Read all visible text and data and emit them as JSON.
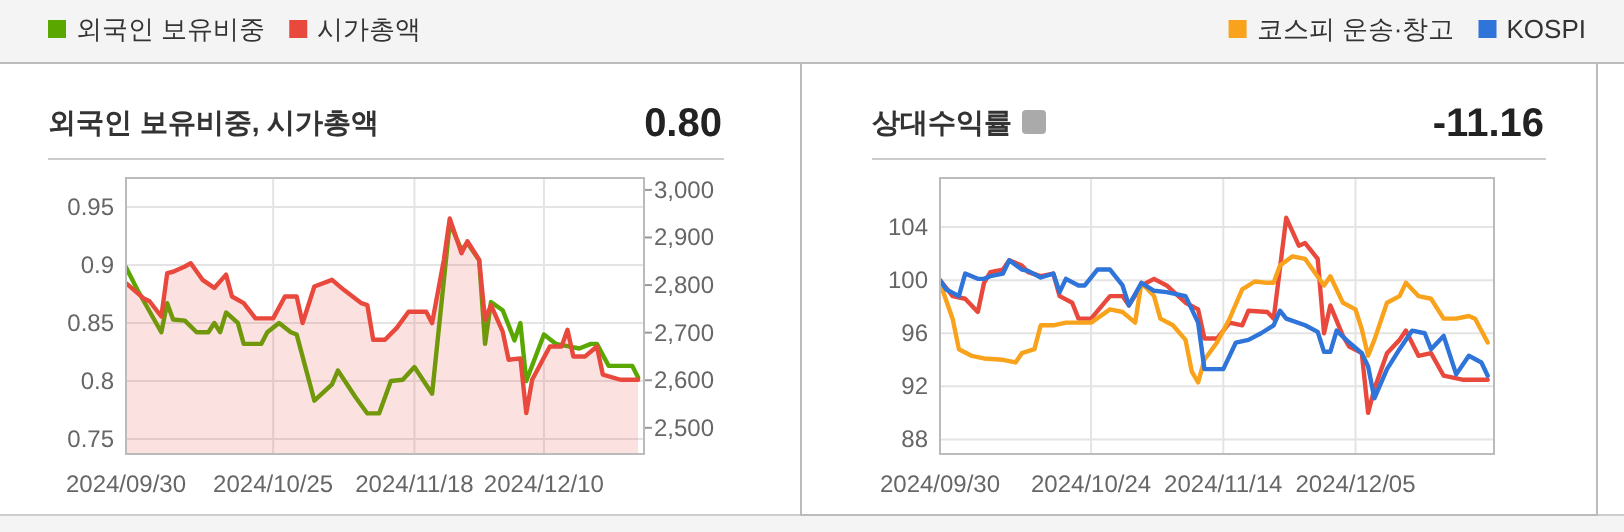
{
  "chart_data": [
    {
      "type": "line",
      "title": "외국인 보유비중, 시가총액",
      "subtitle": "0.80",
      "legend": "top left",
      "grid": true,
      "xlim": [
        "2024-09-30",
        "2024-12-27"
      ],
      "xticks": [
        {
          "value": "2024-09-30",
          "label": "2024/09/30"
        },
        {
          "value": "2024-10-25",
          "label": "2024/10/25"
        },
        {
          "value": "2024-11-18",
          "label": "2024/11/18"
        },
        {
          "value": "2024-12-10",
          "label": "2024/12/10"
        }
      ],
      "ylim": [
        0.737,
        0.975
      ],
      "yticks": [
        0.75,
        0.8,
        0.85,
        0.9,
        0.95
      ],
      "y2lim": [
        2445,
        3025
      ],
      "y2ticks": [
        {
          "value": 2500,
          "label": "2,500"
        },
        {
          "value": 2600,
          "label": "2,600"
        },
        {
          "value": 2700,
          "label": "2,700"
        },
        {
          "value": 2800,
          "label": "2,800"
        },
        {
          "value": 2900,
          "label": "2,900"
        },
        {
          "value": 3000,
          "label": "3,000"
        }
      ],
      "series": [
        {
          "name": "외국인 보유비중",
          "color": "#5aa700",
          "type": "line",
          "x": [
            "2024-09-30",
            "2024-10-02",
            "2024-10-06",
            "2024-10-07",
            "2024-10-08",
            "2024-10-10",
            "2024-10-12",
            "2024-10-14",
            "2024-10-15",
            "2024-10-16",
            "2024-10-17",
            "2024-10-19",
            "2024-10-20",
            "2024-10-23",
            "2024-10-24",
            "2024-10-26",
            "2024-10-28",
            "2024-10-29",
            "2024-11-01",
            "2024-11-04",
            "2024-11-05",
            "2024-11-08",
            "2024-11-10",
            "2024-11-12",
            "2024-11-14",
            "2024-11-16",
            "2024-11-18",
            "2024-11-21",
            "2024-11-24",
            "2024-11-26",
            "2024-11-27",
            "2024-11-29",
            "2024-11-30",
            "2024-12-01",
            "2024-12-03",
            "2024-12-05",
            "2024-12-06",
            "2024-12-07",
            "2024-12-10",
            "2024-12-12",
            "2024-12-14",
            "2024-12-16",
            "2024-12-18",
            "2024-12-19",
            "2024-12-21",
            "2024-12-25",
            "2024-12-26"
          ],
          "values": [
            0.898,
            0.878,
            0.842,
            0.867,
            0.853,
            0.852,
            0.842,
            0.842,
            0.85,
            0.842,
            0.859,
            0.85,
            0.832,
            0.832,
            0.842,
            0.85,
            0.842,
            0.84,
            0.783,
            0.797,
            0.809,
            0.786,
            0.772,
            0.772,
            0.8,
            0.801,
            0.812,
            0.789,
            0.936,
            0.913,
            0.919,
            0.904,
            0.832,
            0.868,
            0.861,
            0.835,
            0.85,
            0.8,
            0.84,
            0.832,
            0.83,
            0.828,
            0.832,
            0.832,
            0.813,
            0.813,
            0.803
          ]
        },
        {
          "name": "시가총액",
          "color": "#e8493c",
          "type": "area",
          "axis": "y2",
          "x": [
            "2024-09-30",
            "2024-10-03",
            "2024-10-04",
            "2024-10-06",
            "2024-10-07",
            "2024-10-08",
            "2024-10-10",
            "2024-10-11",
            "2024-10-13",
            "2024-10-15",
            "2024-10-17",
            "2024-10-18",
            "2024-10-20",
            "2024-10-22",
            "2024-10-25",
            "2024-10-27",
            "2024-10-29",
            "2024-10-30",
            "2024-11-01",
            "2024-11-04",
            "2024-11-06",
            "2024-11-09",
            "2024-11-10",
            "2024-11-11",
            "2024-11-13",
            "2024-11-15",
            "2024-11-17",
            "2024-11-20",
            "2024-11-21",
            "2024-11-23",
            "2024-11-24",
            "2024-11-26",
            "2024-11-27",
            "2024-11-29",
            "2024-11-30",
            "2024-12-01",
            "2024-12-03",
            "2024-12-04",
            "2024-12-06",
            "2024-12-07",
            "2024-12-08",
            "2024-12-11",
            "2024-12-13",
            "2024-12-14",
            "2024-12-15",
            "2024-12-17",
            "2024-12-19",
            "2024-12-20",
            "2024-12-23",
            "2024-12-26"
          ],
          "values": [
            2804,
            2772,
            2766,
            2734,
            2825,
            2828,
            2839,
            2846,
            2811,
            2794,
            2822,
            2776,
            2762,
            2730,
            2730,
            2776,
            2776,
            2720,
            2797,
            2811,
            2790,
            2762,
            2758,
            2685,
            2685,
            2710,
            2744,
            2744,
            2720,
            2853,
            2940,
            2867,
            2892,
            2853,
            2727,
            2758,
            2702,
            2643,
            2646,
            2531,
            2601,
            2671,
            2671,
            2706,
            2650,
            2650,
            2671,
            2612,
            2601,
            2601
          ]
        }
      ]
    },
    {
      "type": "line",
      "title": "상대수익률",
      "subtitle": "-11.16",
      "legend": "top right",
      "grid": true,
      "xlim": [
        "2024-09-30",
        "2024-12-27"
      ],
      "xticks": [
        {
          "value": "2024-09-30",
          "label": "2024/09/30"
        },
        {
          "value": "2024-10-24",
          "label": "2024/10/24"
        },
        {
          "value": "2024-11-14",
          "label": "2024/11/14"
        },
        {
          "value": "2024-12-05",
          "label": "2024/12/05"
        }
      ],
      "ylim": [
        86.9,
        107.7
      ],
      "yticks": [
        88,
        92,
        96,
        100,
        104
      ],
      "series": [
        {
          "color": "#e8493c",
          "type": "line",
          "x": [
            "2024-09-30",
            "2024-10-02",
            "2024-10-04",
            "2024-10-06",
            "2024-10-07",
            "2024-10-08",
            "2024-10-10",
            "2024-10-11",
            "2024-10-13",
            "2024-10-14",
            "2024-10-16",
            "2024-10-18",
            "2024-10-19",
            "2024-10-21",
            "2024-10-22",
            "2024-10-24",
            "2024-10-27",
            "2024-10-29",
            "2024-10-30",
            "2024-11-01",
            "2024-11-03",
            "2024-11-05",
            "2024-11-08",
            "2024-11-10",
            "2024-11-11",
            "2024-11-13",
            "2024-11-15",
            "2024-11-17",
            "2024-11-18",
            "2024-11-21",
            "2024-11-22",
            "2024-11-24",
            "2024-11-26",
            "2024-11-27",
            "2024-11-29",
            "2024-11-30",
            "2024-12-01",
            "2024-12-03",
            "2024-12-04",
            "2024-12-06",
            "2024-12-07",
            "2024-12-08",
            "2024-12-10",
            "2024-12-12",
            "2024-12-13",
            "2024-12-15",
            "2024-12-17",
            "2024-12-19",
            "2024-12-22",
            "2024-12-26"
          ],
          "values": [
            100,
            98.8,
            98.6,
            97.6,
            99.8,
            100.6,
            100.8,
            101.5,
            101.1,
            100.6,
            100.3,
            100.5,
            98.8,
            98.3,
            97.1,
            97.1,
            98.8,
            98.8,
            98.1,
            99.6,
            100.1,
            99.6,
            98.3,
            97.8,
            95.6,
            95.6,
            96.8,
            96.6,
            97.7,
            97.6,
            97.1,
            104.7,
            102.6,
            102.8,
            101.6,
            96,
            98.1,
            95.8,
            95,
            94.5,
            90,
            91.8,
            94.5,
            95.5,
            96.2,
            94.3,
            94.5,
            92.8,
            92.5,
            92.5
          ]
        },
        {
          "name": "코스피 운송·창고",
          "color": "#f9a21b",
          "type": "line",
          "x": [
            "2024-09-30",
            "2024-10-02",
            "2024-10-03",
            "2024-10-05",
            "2024-10-07",
            "2024-10-10",
            "2024-10-12",
            "2024-10-13",
            "2024-10-15",
            "2024-10-16",
            "2024-10-18",
            "2024-10-20",
            "2024-10-21",
            "2024-10-24",
            "2024-10-27",
            "2024-10-29",
            "2024-10-31",
            "2024-11-01",
            "2024-11-03",
            "2024-11-04",
            "2024-11-06",
            "2024-11-08",
            "2024-11-09",
            "2024-11-10",
            "2024-11-11",
            "2024-11-13",
            "2024-11-15",
            "2024-11-17",
            "2024-11-19",
            "2024-11-21",
            "2024-11-22",
            "2024-11-23",
            "2024-11-25",
            "2024-11-27",
            "2024-11-30",
            "2024-12-01",
            "2024-12-03",
            "2024-12-05",
            "2024-12-06",
            "2024-12-07",
            "2024-12-08",
            "2024-12-10",
            "2024-12-12",
            "2024-12-13",
            "2024-12-15",
            "2024-12-17",
            "2024-12-19",
            "2024-12-21",
            "2024-12-23",
            "2024-12-24",
            "2024-12-26"
          ],
          "values": [
            99.8,
            97.1,
            94.8,
            94.3,
            94.1,
            94,
            93.8,
            94.5,
            94.8,
            96.6,
            96.6,
            96.8,
            96.8,
            96.8,
            97.8,
            97.6,
            96.8,
            99.8,
            98.8,
            97.1,
            96.6,
            95.5,
            93.1,
            92.3,
            94,
            95.3,
            97.1,
            99.3,
            99.9,
            99.8,
            99.8,
            101.1,
            101.8,
            101.6,
            99.6,
            100.3,
            98.3,
            97.8,
            96.3,
            94.3,
            95.5,
            98.3,
            98.8,
            99.8,
            98.8,
            98.6,
            97.1,
            97.1,
            97.3,
            97.1,
            95.3
          ]
        },
        {
          "name": "KOSPI",
          "color": "#2f74d8",
          "type": "line",
          "x": [
            "2024-09-30",
            "2024-10-01",
            "2024-10-03",
            "2024-10-04",
            "2024-10-06",
            "2024-10-07",
            "2024-10-08",
            "2024-10-10",
            "2024-10-11",
            "2024-10-13",
            "2024-10-14",
            "2024-10-16",
            "2024-10-18",
            "2024-10-19",
            "2024-10-20",
            "2024-10-22",
            "2024-10-23",
            "2024-10-25",
            "2024-10-27",
            "2024-10-29",
            "2024-10-30",
            "2024-11-01",
            "2024-11-03",
            "2024-11-05",
            "2024-11-08",
            "2024-11-10",
            "2024-11-11",
            "2024-11-14",
            "2024-11-16",
            "2024-11-18",
            "2024-11-20",
            "2024-11-22",
            "2024-11-23",
            "2024-11-24",
            "2024-11-27",
            "2024-11-29",
            "2024-11-30",
            "2024-12-01",
            "2024-12-02",
            "2024-12-04",
            "2024-12-06",
            "2024-12-07",
            "2024-12-08",
            "2024-12-10",
            "2024-12-12",
            "2024-12-14",
            "2024-12-16",
            "2024-12-17",
            "2024-12-19",
            "2024-12-21",
            "2024-12-23",
            "2024-12-25",
            "2024-12-26"
          ],
          "values": [
            100,
            99.3,
            98.8,
            100.5,
            100.1,
            100.1,
            100.3,
            100.5,
            101.5,
            100.8,
            100.7,
            100.2,
            100.5,
            99.1,
            100.1,
            99.6,
            99.6,
            100.8,
            100.8,
            99.6,
            98.1,
            99.8,
            99.2,
            99.1,
            98.8,
            96.8,
            93.3,
            93.3,
            95.3,
            95.5,
            96,
            96.6,
            97.7,
            97.1,
            96.6,
            96.1,
            94.6,
            94.6,
            96.2,
            95.3,
            94.5,
            93.5,
            91.1,
            93.3,
            94.8,
            96.2,
            96,
            94.8,
            95.8,
            92.9,
            94.3,
            93.8,
            92.8
          ]
        }
      ]
    }
  ]
}
